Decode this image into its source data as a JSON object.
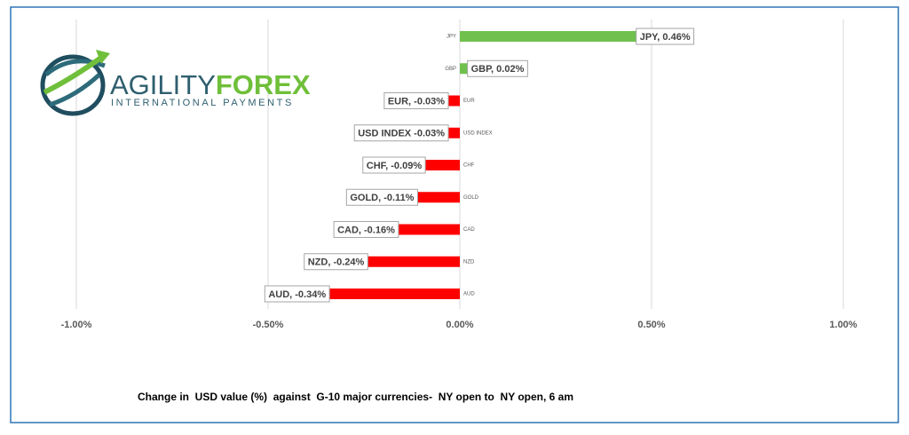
{
  "chart_data": {
    "type": "bar",
    "orientation": "horizontal",
    "caption": "Change in  USD value (%)  against  G-10 major currencies-  NY open to  NY open, 6 am",
    "categories": [
      "JPY",
      "GBP",
      "EUR",
      "USD INDEX",
      "CHF",
      "GOLD",
      "CAD",
      "NZD",
      "AUD"
    ],
    "values": [
      0.46,
      0.02,
      -0.03,
      -0.03,
      -0.09,
      -0.11,
      -0.16,
      -0.24,
      -0.34
    ],
    "value_labels": [
      "JPY, 0.46%",
      "GBP, 0.02%",
      "EUR, -0.03%",
      "USD INDEX -0.03%",
      "CHF, -0.09%",
      "GOLD, -0.11%",
      "CAD, -0.16%",
      "NZD, -0.24%",
      "AUD, -0.34%"
    ],
    "positive_color": "#70c04e",
    "negative_color": "#ff0000",
    "xlim": [
      -1,
      1
    ],
    "xticks": [
      {
        "value": -1,
        "label": "-1.00%"
      },
      {
        "value": -0.5,
        "label": "-0.50%"
      },
      {
        "value": 0,
        "label": "0.00%"
      },
      {
        "value": 0.5,
        "label": "0.50%"
      },
      {
        "value": 1,
        "label": "1.00%"
      }
    ],
    "grid": true
  },
  "logo": {
    "name_part1": "AGILITY",
    "name_part2": "FOREX",
    "tagline": "INTERNATIONAL PAYMENTS"
  }
}
